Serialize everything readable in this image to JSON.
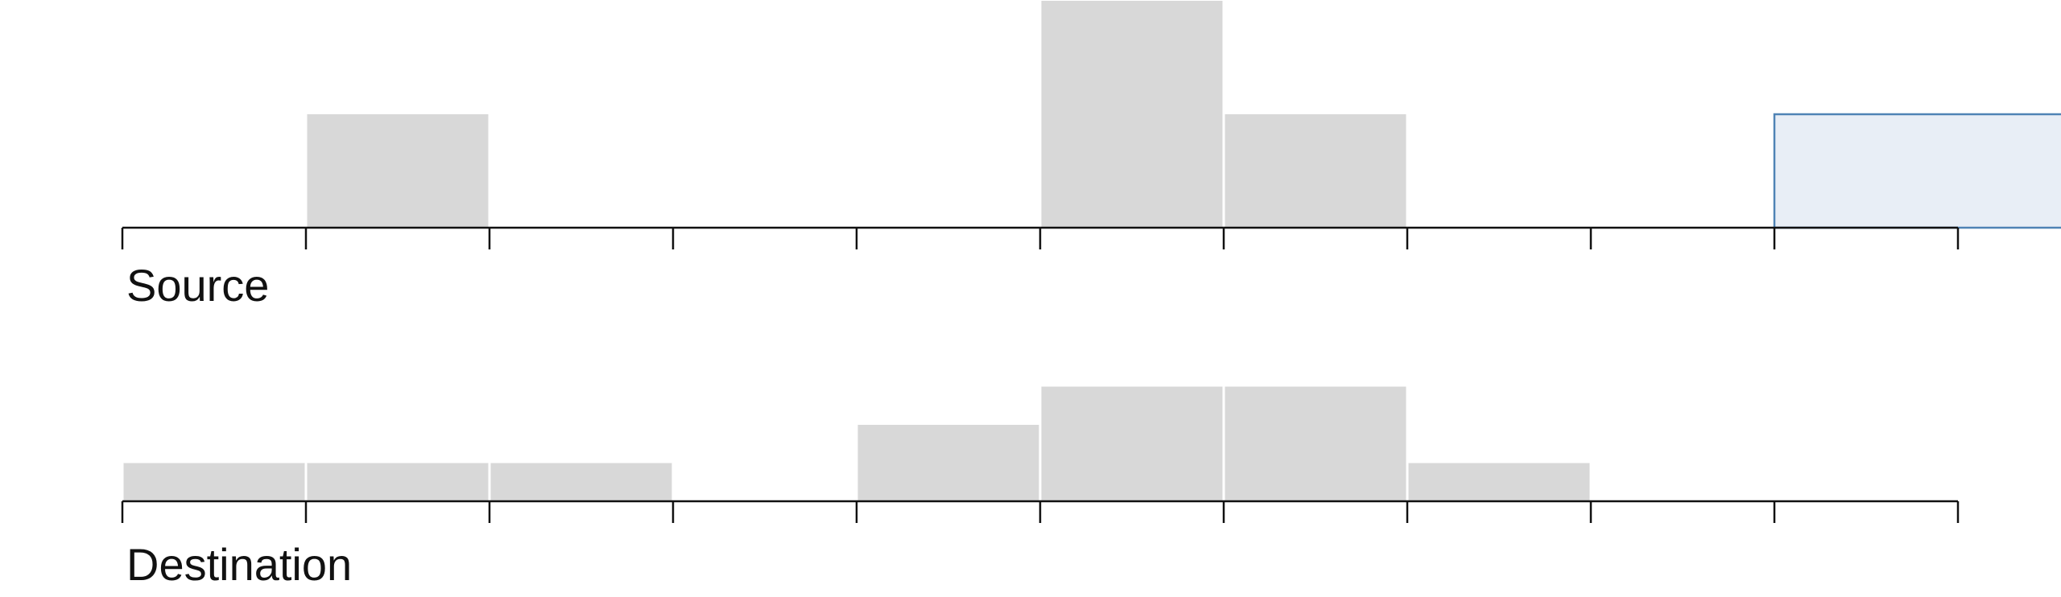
{
  "chart_data": [
    {
      "type": "bar",
      "xlabel": "Source",
      "bins": 10,
      "values": [
        0,
        1,
        0,
        0,
        0,
        2,
        1,
        0,
        0,
        1
      ],
      "highlighted_bins": [
        9
      ],
      "ylim": [
        0,
        2
      ],
      "grid": false
    },
    {
      "type": "bar",
      "xlabel": "Destination",
      "bins": 10,
      "values": [
        1,
        1,
        1,
        0,
        2,
        3,
        3,
        1,
        0,
        0
      ],
      "highlighted_bins": [],
      "ylim": [
        0,
        3
      ],
      "grid": false
    }
  ],
  "colors": {
    "bar": "#d8d8d8",
    "bar_gap": "#ffffff",
    "highlight_fill": "#e8eef6",
    "highlight_stroke": "#4f83b5",
    "axis": "#111111",
    "label": "#111111"
  }
}
